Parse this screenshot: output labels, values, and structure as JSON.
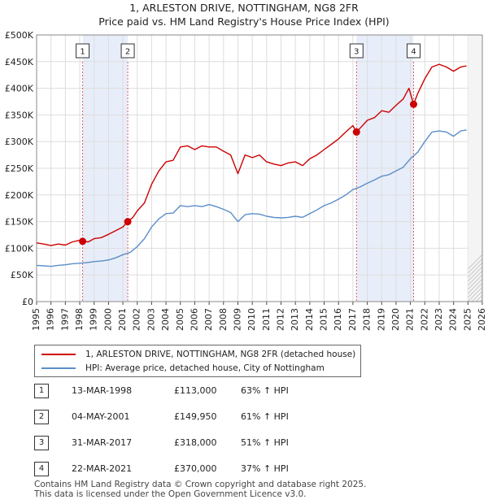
{
  "chart_data": {
    "type": "line",
    "title": "1, ARLESTON DRIVE, NOTTINGHAM, NG8 2FR",
    "subtitle": "Price paid vs. HM Land Registry's House Price Index (HPI)",
    "xlim": [
      1995,
      2026
    ],
    "ylim": [
      0,
      500000
    ],
    "yticks": [
      {
        "value": 0,
        "label": "£0"
      },
      {
        "value": 50000,
        "label": "£50K"
      },
      {
        "value": 100000,
        "label": "£100K"
      },
      {
        "value": 150000,
        "label": "£150K"
      },
      {
        "value": 200000,
        "label": "£200K"
      },
      {
        "value": 250000,
        "label": "£250K"
      },
      {
        "value": 300000,
        "label": "£300K"
      },
      {
        "value": 350000,
        "label": "£350K"
      },
      {
        "value": 400000,
        "label": "£400K"
      },
      {
        "value": 450000,
        "label": "£450K"
      },
      {
        "value": 500000,
        "label": "£500K"
      }
    ],
    "xticks": [
      "1995",
      "1996",
      "1997",
      "1998",
      "1999",
      "2000",
      "2001",
      "2002",
      "2003",
      "2004",
      "2005",
      "2006",
      "2007",
      "2008",
      "2009",
      "2010",
      "2011",
      "2012",
      "2013",
      "2014",
      "2015",
      "2016",
      "2017",
      "2018",
      "2019",
      "2020",
      "2021",
      "2022",
      "2023",
      "2024",
      "2025",
      "2026"
    ],
    "grid": true,
    "shaded_periods": [
      [
        1998.2,
        2001.34
      ],
      [
        2017.25,
        2021.22
      ]
    ],
    "series": [
      {
        "name": "1, ARLESTON DRIVE, NOTTINGHAM, NG8 2FR (detached house)",
        "color": "#cc0000",
        "points": [
          [
            1995,
            110000
          ],
          [
            1995.5,
            108000
          ],
          [
            1996,
            105000
          ],
          [
            1996.5,
            108000
          ],
          [
            1997,
            106000
          ],
          [
            1997.5,
            112000
          ],
          [
            1998,
            115000
          ],
          [
            1998.2,
            113000
          ],
          [
            1998.6,
            112000
          ],
          [
            1999,
            118000
          ],
          [
            1999.5,
            120000
          ],
          [
            2000,
            126000
          ],
          [
            2000.5,
            133000
          ],
          [
            2001,
            140000
          ],
          [
            2001.34,
            149950
          ],
          [
            2001.7,
            158000
          ],
          [
            2002,
            170000
          ],
          [
            2002.5,
            185000
          ],
          [
            2003,
            220000
          ],
          [
            2003.5,
            245000
          ],
          [
            2004,
            262000
          ],
          [
            2004.5,
            265000
          ],
          [
            2005,
            290000
          ],
          [
            2005.5,
            292000
          ],
          [
            2006,
            285000
          ],
          [
            2006.5,
            292000
          ],
          [
            2007,
            290000
          ],
          [
            2007.5,
            290000
          ],
          [
            2008,
            282000
          ],
          [
            2008.5,
            275000
          ],
          [
            2009,
            240000
          ],
          [
            2009.5,
            275000
          ],
          [
            2010,
            270000
          ],
          [
            2010.5,
            275000
          ],
          [
            2011,
            262000
          ],
          [
            2011.5,
            258000
          ],
          [
            2012,
            255000
          ],
          [
            2012.5,
            260000
          ],
          [
            2013,
            262000
          ],
          [
            2013.5,
            255000
          ],
          [
            2014,
            268000
          ],
          [
            2014.5,
            275000
          ],
          [
            2015,
            285000
          ],
          [
            2015.5,
            295000
          ],
          [
            2016,
            305000
          ],
          [
            2016.5,
            318000
          ],
          [
            2017,
            330000
          ],
          [
            2017.25,
            318000
          ],
          [
            2017.6,
            328000
          ],
          [
            2018,
            340000
          ],
          [
            2018.5,
            345000
          ],
          [
            2019,
            358000
          ],
          [
            2019.5,
            355000
          ],
          [
            2020,
            368000
          ],
          [
            2020.5,
            380000
          ],
          [
            2020.9,
            400000
          ],
          [
            2021.22,
            370000
          ],
          [
            2021.5,
            390000
          ],
          [
            2022,
            418000
          ],
          [
            2022.5,
            440000
          ],
          [
            2023,
            445000
          ],
          [
            2023.5,
            440000
          ],
          [
            2024,
            432000
          ],
          [
            2024.5,
            440000
          ],
          [
            2024.9,
            442000
          ]
        ]
      },
      {
        "name": "HPI: Average price, detached house, City of Nottingham",
        "color": "#5b8ec9",
        "points": [
          [
            1995,
            68000
          ],
          [
            1995.5,
            67000
          ],
          [
            1996,
            66000
          ],
          [
            1996.5,
            68000
          ],
          [
            1997,
            69000
          ],
          [
            1997.5,
            71000
          ],
          [
            1998,
            72000
          ],
          [
            1998.5,
            73000
          ],
          [
            1999,
            75000
          ],
          [
            1999.5,
            76000
          ],
          [
            2000,
            78000
          ],
          [
            2000.5,
            82000
          ],
          [
            2001,
            88000
          ],
          [
            2001.5,
            92000
          ],
          [
            2002,
            103000
          ],
          [
            2002.5,
            118000
          ],
          [
            2003,
            140000
          ],
          [
            2003.5,
            155000
          ],
          [
            2004,
            165000
          ],
          [
            2004.5,
            166000
          ],
          [
            2005,
            180000
          ],
          [
            2005.5,
            178000
          ],
          [
            2006,
            180000
          ],
          [
            2006.5,
            178000
          ],
          [
            2007,
            182000
          ],
          [
            2007.5,
            178000
          ],
          [
            2008,
            173000
          ],
          [
            2008.5,
            167000
          ],
          [
            2009,
            150000
          ],
          [
            2009.5,
            163000
          ],
          [
            2010,
            165000
          ],
          [
            2010.5,
            164000
          ],
          [
            2011,
            160000
          ],
          [
            2011.5,
            158000
          ],
          [
            2012,
            157000
          ],
          [
            2012.5,
            158000
          ],
          [
            2013,
            160000
          ],
          [
            2013.5,
            158000
          ],
          [
            2014,
            165000
          ],
          [
            2014.5,
            172000
          ],
          [
            2015,
            180000
          ],
          [
            2015.5,
            185000
          ],
          [
            2016,
            192000
          ],
          [
            2016.5,
            200000
          ],
          [
            2017,
            210000
          ],
          [
            2017.5,
            215000
          ],
          [
            2018,
            222000
          ],
          [
            2018.5,
            228000
          ],
          [
            2019,
            235000
          ],
          [
            2019.5,
            238000
          ],
          [
            2020,
            245000
          ],
          [
            2020.5,
            252000
          ],
          [
            2021,
            268000
          ],
          [
            2021.5,
            280000
          ],
          [
            2022,
            300000
          ],
          [
            2022.5,
            318000
          ],
          [
            2023,
            320000
          ],
          [
            2023.5,
            318000
          ],
          [
            2024,
            310000
          ],
          [
            2024.5,
            320000
          ],
          [
            2024.9,
            322000
          ]
        ]
      }
    ],
    "sales": [
      {
        "num": "1",
        "x": 1998.2,
        "value": 113000
      },
      {
        "num": "2",
        "x": 2001.34,
        "value": 149950
      },
      {
        "num": "3",
        "x": 2017.25,
        "value": 318000
      },
      {
        "num": "4",
        "x": 2021.22,
        "value": 370000
      }
    ]
  },
  "legend": {
    "property_label": "1, ARLESTON DRIVE, NOTTINGHAM, NG8 2FR (detached house)",
    "hpi_label": "HPI: Average price, detached house, City of Nottingham",
    "property_color": "#cc0000",
    "hpi_color": "#5b8ec9"
  },
  "sales_table": [
    {
      "num": "1",
      "date": "13-MAR-1998",
      "price": "£113,000",
      "pct": "63% ↑ HPI"
    },
    {
      "num": "2",
      "date": "04-MAY-2001",
      "price": "£149,950",
      "pct": "61% ↑ HPI"
    },
    {
      "num": "3",
      "date": "31-MAR-2017",
      "price": "£318,000",
      "pct": "51% ↑ HPI"
    },
    {
      "num": "4",
      "date": "22-MAR-2021",
      "price": "£370,000",
      "pct": "37% ↑ HPI"
    }
  ],
  "footer": {
    "line1": "Contains HM Land Registry data © Crown copyright and database right 2025.",
    "line2": "This data is licensed under the Open Government Licence v3.0."
  }
}
